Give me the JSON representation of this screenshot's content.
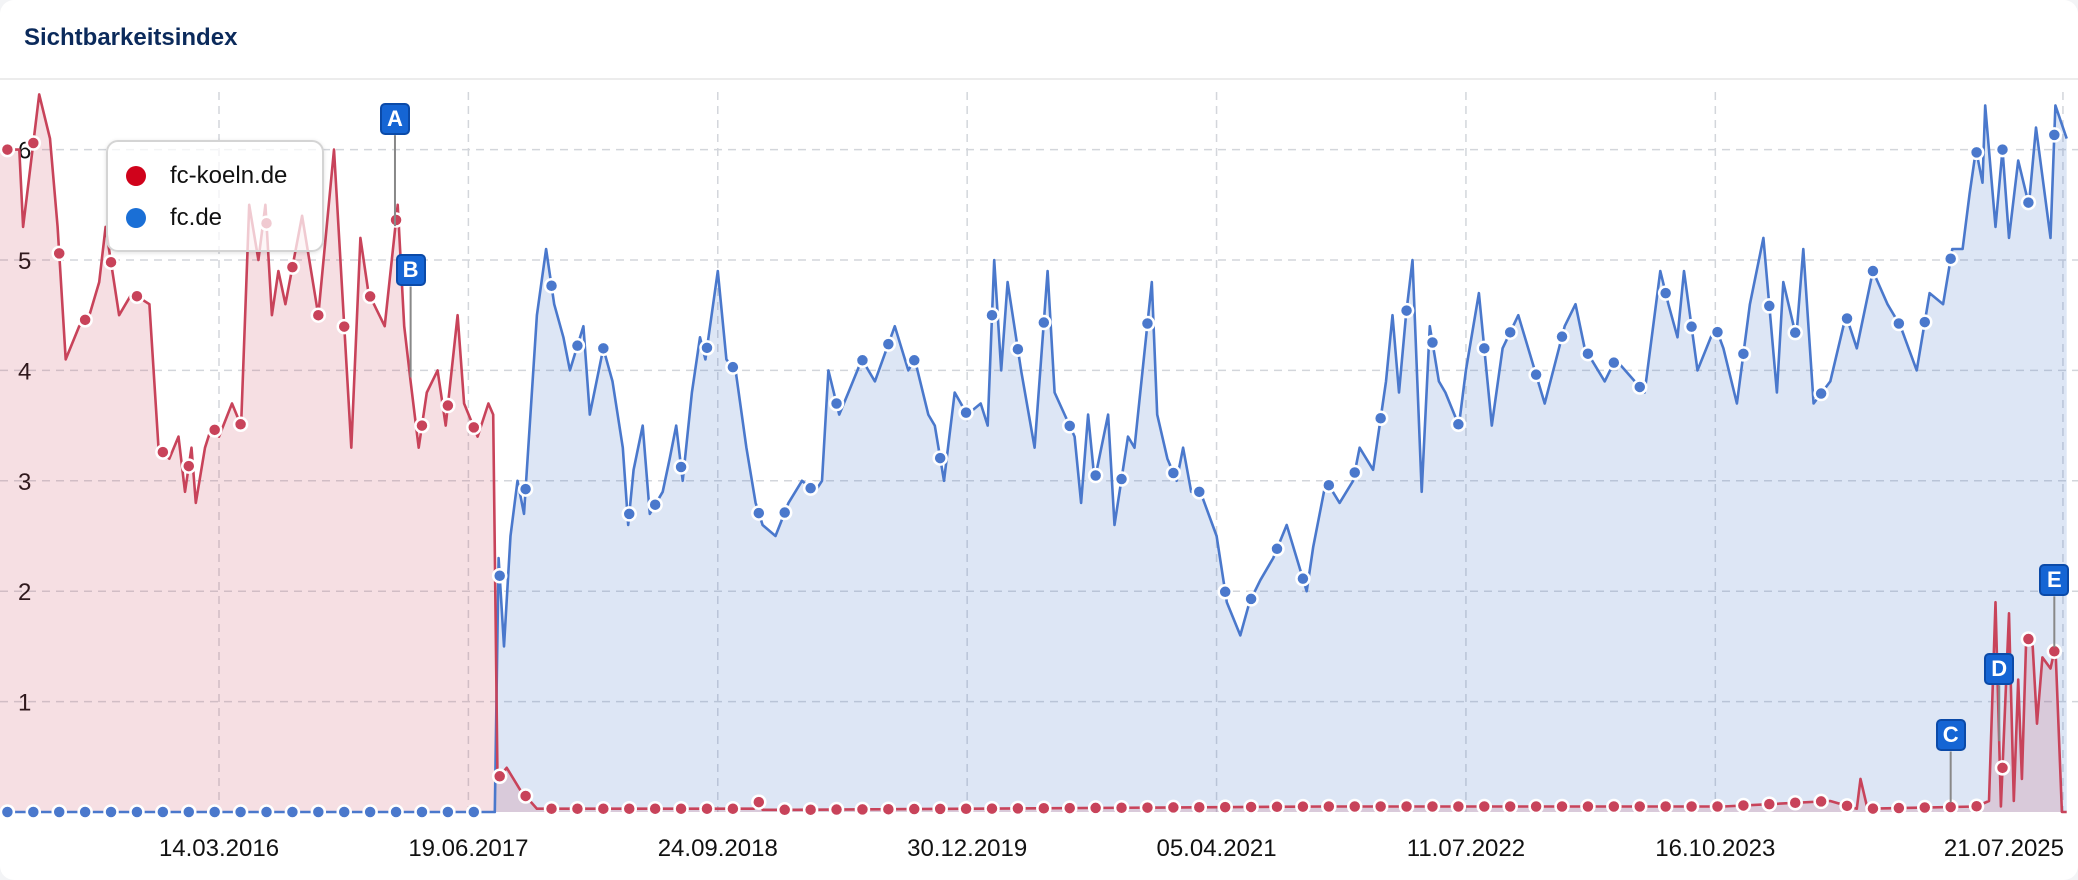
{
  "card": {
    "title": "Sichtbarkeitsindex"
  },
  "chart_data": {
    "type": "area",
    "title": "",
    "xlabel": "",
    "ylabel": "",
    "x_type": "date",
    "xlim": [
      "2015-02-01",
      "2025-07-28"
    ],
    "ylim": [
      0,
      6.6
    ],
    "y_ticks": [
      "1",
      "2",
      "3",
      "4",
      "5",
      "6"
    ],
    "x_ticks": [
      {
        "date": "2016-03-14",
        "label": "14.03.2016"
      },
      {
        "date": "2017-06-19",
        "label": "19.06.2017"
      },
      {
        "date": "2018-09-24",
        "label": "24.09.2018"
      },
      {
        "date": "2019-12-30",
        "label": "30.12.2019"
      },
      {
        "date": "2021-04-05",
        "label": "05.04.2021"
      },
      {
        "date": "2022-07-11",
        "label": "11.07.2022"
      },
      {
        "date": "2023-10-16",
        "label": "16.10.2023"
      },
      {
        "date": "2025-07-21",
        "label": "21.07.2025"
      }
    ],
    "grid": true,
    "legend_position": "top-left",
    "series": [
      {
        "name": "fc-koeln.de",
        "color": "#c8435a",
        "legend_color": "#d0021b",
        "points": [
          [
            "2015-02-02",
            6.0
          ],
          [
            "2015-03-10",
            6.0
          ],
          [
            "2015-03-17",
            5.3
          ],
          [
            "2015-03-27",
            5.7
          ],
          [
            "2015-04-16",
            6.5
          ],
          [
            "2015-05-06",
            6.1
          ],
          [
            "2015-05-20",
            5.3
          ],
          [
            "2015-06-04",
            4.1
          ],
          [
            "2015-06-29",
            4.4
          ],
          [
            "2015-07-18",
            4.5
          ],
          [
            "2015-08-05",
            4.8
          ],
          [
            "2015-08-17",
            5.3
          ],
          [
            "2015-09-11",
            4.5
          ],
          [
            "2015-10-05",
            4.7
          ],
          [
            "2015-11-06",
            4.6
          ],
          [
            "2015-11-23",
            3.3
          ],
          [
            "2015-12-13",
            3.2
          ],
          [
            "2015-12-30",
            3.4
          ],
          [
            "2016-01-11",
            2.9
          ],
          [
            "2016-01-23",
            3.3
          ],
          [
            "2016-01-31",
            2.8
          ],
          [
            "2016-02-17",
            3.3
          ],
          [
            "2016-03-01",
            3.5
          ],
          [
            "2016-03-14",
            3.4
          ],
          [
            "2016-04-07",
            3.7
          ],
          [
            "2016-04-24",
            3.5
          ],
          [
            "2016-05-09",
            5.5
          ],
          [
            "2016-05-26",
            5.0
          ],
          [
            "2016-06-08",
            5.5
          ],
          [
            "2016-06-20",
            4.5
          ],
          [
            "2016-07-02",
            4.9
          ],
          [
            "2016-07-15",
            4.6
          ],
          [
            "2016-08-15",
            5.4
          ],
          [
            "2016-09-14",
            4.5
          ],
          [
            "2016-10-13",
            6.0
          ],
          [
            "2016-11-14",
            3.3
          ],
          [
            "2016-12-01",
            5.2
          ],
          [
            "2016-12-16",
            4.7
          ],
          [
            "2017-01-15",
            4.4
          ],
          [
            "2017-02-08",
            5.5
          ],
          [
            "2017-02-20",
            4.4
          ],
          [
            "2017-03-04",
            3.9
          ],
          [
            "2017-03-19",
            3.3
          ],
          [
            "2017-04-03",
            3.8
          ],
          [
            "2017-04-23",
            4.0
          ],
          [
            "2017-05-08",
            3.5
          ],
          [
            "2017-05-30",
            4.5
          ],
          [
            "2017-06-11",
            3.7
          ],
          [
            "2017-07-06",
            3.4
          ],
          [
            "2017-07-26",
            3.7
          ],
          [
            "2017-08-04",
            3.6
          ],
          [
            "2017-08-12",
            0.3
          ],
          [
            "2017-08-29",
            0.4
          ],
          [
            "2017-09-23",
            0.2
          ],
          [
            "2017-10-24",
            0.03
          ],
          [
            "2018-11-30",
            0.03
          ],
          [
            "2018-12-08",
            0.1
          ],
          [
            "2018-12-16",
            0.02
          ],
          [
            "2019-02-15",
            0.02
          ],
          [
            "2021-10-25",
            0.05
          ],
          [
            "2023-10-31",
            0.05
          ],
          [
            "2024-05-16",
            0.1
          ],
          [
            "2024-07-04",
            0.03
          ],
          [
            "2024-07-11",
            0.3
          ],
          [
            "2024-07-24",
            0.03
          ],
          [
            "2025-02-10",
            0.05
          ],
          [
            "2025-03-06",
            0.1
          ],
          [
            "2025-03-18",
            1.9
          ],
          [
            "2025-03-28",
            0.05
          ],
          [
            "2025-04-12",
            1.8
          ],
          [
            "2025-04-21",
            0.1
          ],
          [
            "2025-04-29",
            1.2
          ],
          [
            "2025-05-06",
            0.3
          ],
          [
            "2025-05-14",
            1.6
          ],
          [
            "2025-05-26",
            1.5
          ],
          [
            "2025-06-03",
            0.8
          ],
          [
            "2025-06-13",
            1.4
          ],
          [
            "2025-06-28",
            1.3
          ],
          [
            "2025-07-07",
            1.5
          ],
          [
            "2025-07-19",
            0.0
          ],
          [
            "2025-07-28",
            0.0
          ]
        ]
      },
      {
        "name": "fc.de",
        "color": "#4a78cc",
        "legend_color": "#1a6fd6",
        "points": [
          [
            "2015-02-02",
            0.0
          ],
          [
            "2017-08-07",
            0.0
          ],
          [
            "2017-08-14",
            2.3
          ],
          [
            "2017-08-24",
            1.5
          ],
          [
            "2017-09-05",
            2.5
          ],
          [
            "2017-09-18",
            3.0
          ],
          [
            "2017-09-30",
            2.7
          ],
          [
            "2017-10-24",
            4.5
          ],
          [
            "2017-11-10",
            5.1
          ],
          [
            "2017-11-25",
            4.6
          ],
          [
            "2017-12-12",
            4.3
          ],
          [
            "2017-12-24",
            4.0
          ],
          [
            "2018-01-18",
            4.4
          ],
          [
            "2018-01-30",
            3.6
          ],
          [
            "2018-02-24",
            4.2
          ],
          [
            "2018-03-13",
            3.9
          ],
          [
            "2018-04-01",
            3.3
          ],
          [
            "2018-04-11",
            2.6
          ],
          [
            "2018-04-21",
            3.1
          ],
          [
            "2018-05-08",
            3.5
          ],
          [
            "2018-05-21",
            2.7
          ],
          [
            "2018-06-14",
            2.9
          ],
          [
            "2018-06-27",
            3.2
          ],
          [
            "2018-07-09",
            3.5
          ],
          [
            "2018-07-21",
            3.0
          ],
          [
            "2018-08-07",
            3.8
          ],
          [
            "2018-08-22",
            4.3
          ],
          [
            "2018-09-01",
            4.1
          ],
          [
            "2018-09-24",
            4.9
          ],
          [
            "2018-10-10",
            4.1
          ],
          [
            "2018-10-27",
            4.0
          ],
          [
            "2018-11-16",
            3.3
          ],
          [
            "2018-12-03",
            2.8
          ],
          [
            "2018-12-16",
            2.6
          ],
          [
            "2019-01-09",
            2.5
          ],
          [
            "2019-02-02",
            2.8
          ],
          [
            "2019-02-27",
            3.0
          ],
          [
            "2019-03-23",
            2.9
          ],
          [
            "2019-04-05",
            3.0
          ],
          [
            "2019-04-17",
            4.0
          ],
          [
            "2019-05-07",
            3.6
          ],
          [
            "2019-05-24",
            3.8
          ],
          [
            "2019-06-18",
            4.1
          ],
          [
            "2019-07-12",
            3.9
          ],
          [
            "2019-08-18",
            4.4
          ],
          [
            "2019-09-12",
            4.0
          ],
          [
            "2019-09-24",
            4.1
          ],
          [
            "2019-10-19",
            3.6
          ],
          [
            "2019-10-31",
            3.5
          ],
          [
            "2019-11-17",
            3.0
          ],
          [
            "2019-12-07",
            3.8
          ],
          [
            "2019-12-30",
            3.6
          ],
          [
            "2020-01-24",
            3.7
          ],
          [
            "2020-02-06",
            3.5
          ],
          [
            "2020-02-18",
            5.0
          ],
          [
            "2020-03-02",
            4.0
          ],
          [
            "2020-03-14",
            4.8
          ],
          [
            "2020-04-08",
            4.0
          ],
          [
            "2020-05-03",
            3.3
          ],
          [
            "2020-05-27",
            4.9
          ],
          [
            "2020-06-09",
            3.8
          ],
          [
            "2020-07-16",
            3.4
          ],
          [
            "2020-07-28",
            2.8
          ],
          [
            "2020-08-10",
            3.6
          ],
          [
            "2020-08-22",
            3.0
          ],
          [
            "2020-09-16",
            3.6
          ],
          [
            "2020-09-28",
            2.6
          ],
          [
            "2020-10-23",
            3.4
          ],
          [
            "2020-11-04",
            3.3
          ],
          [
            "2020-12-06",
            4.8
          ],
          [
            "2020-12-16",
            3.6
          ],
          [
            "2021-01-04",
            3.2
          ],
          [
            "2021-01-21",
            3.0
          ],
          [
            "2021-02-02",
            3.3
          ],
          [
            "2021-02-17",
            2.9
          ],
          [
            "2021-03-06",
            2.9
          ],
          [
            "2021-04-05",
            2.5
          ],
          [
            "2021-04-24",
            1.9
          ],
          [
            "2021-05-19",
            1.6
          ],
          [
            "2021-06-05",
            1.9
          ],
          [
            "2021-06-25",
            2.1
          ],
          [
            "2021-07-19",
            2.3
          ],
          [
            "2021-08-13",
            2.6
          ],
          [
            "2021-09-19",
            2.0
          ],
          [
            "2021-10-01",
            2.4
          ],
          [
            "2021-10-25",
            3.0
          ],
          [
            "2021-11-19",
            2.8
          ],
          [
            "2021-12-14",
            3.0
          ],
          [
            "2021-12-26",
            3.3
          ],
          [
            "2022-01-20",
            3.1
          ],
          [
            "2022-02-01",
            3.5
          ],
          [
            "2022-02-13",
            3.9
          ],
          [
            "2022-02-25",
            4.5
          ],
          [
            "2022-03-09",
            3.8
          ],
          [
            "2022-03-22",
            4.5
          ],
          [
            "2022-04-03",
            5.0
          ],
          [
            "2022-04-20",
            2.9
          ],
          [
            "2022-05-05",
            4.4
          ],
          [
            "2022-05-22",
            3.9
          ],
          [
            "2022-06-03",
            3.8
          ],
          [
            "2022-06-28",
            3.5
          ],
          [
            "2022-07-11",
            4.0
          ],
          [
            "2022-08-04",
            4.7
          ],
          [
            "2022-08-28",
            3.5
          ],
          [
            "2022-09-17",
            4.2
          ],
          [
            "2022-10-16",
            4.5
          ],
          [
            "2022-12-04",
            3.7
          ],
          [
            "2023-01-10",
            4.4
          ],
          [
            "2023-01-30",
            4.6
          ],
          [
            "2023-02-16",
            4.2
          ],
          [
            "2023-03-25",
            3.9
          ],
          [
            "2023-04-14",
            4.1
          ],
          [
            "2023-06-07",
            3.8
          ],
          [
            "2023-07-06",
            4.9
          ],
          [
            "2023-07-21",
            4.6
          ],
          [
            "2023-08-07",
            4.3
          ],
          [
            "2023-08-19",
            4.9
          ],
          [
            "2023-09-13",
            4.0
          ],
          [
            "2023-10-16",
            4.4
          ],
          [
            "2023-10-31",
            4.2
          ],
          [
            "2023-11-25",
            3.7
          ],
          [
            "2023-12-19",
            4.6
          ],
          [
            "2024-01-13",
            5.2
          ],
          [
            "2024-02-07",
            3.8
          ],
          [
            "2024-02-19",
            4.8
          ],
          [
            "2024-03-14",
            4.3
          ],
          [
            "2024-03-27",
            5.1
          ],
          [
            "2024-04-15",
            3.7
          ],
          [
            "2024-05-16",
            3.9
          ],
          [
            "2024-06-14",
            4.5
          ],
          [
            "2024-07-04",
            4.2
          ],
          [
            "2024-08-03",
            4.9
          ],
          [
            "2024-08-30",
            4.6
          ],
          [
            "2024-09-23",
            4.4
          ],
          [
            "2024-10-23",
            4.0
          ],
          [
            "2024-11-16",
            4.7
          ],
          [
            "2024-12-11",
            4.6
          ],
          [
            "2024-12-28",
            5.1
          ],
          [
            "2025-01-16",
            5.1
          ],
          [
            "2025-01-29",
            5.6
          ],
          [
            "2025-02-10",
            6.0
          ],
          [
            "2025-02-22",
            5.7
          ],
          [
            "2025-02-27",
            6.4
          ],
          [
            "2025-03-18",
            5.3
          ],
          [
            "2025-03-31",
            6.0
          ],
          [
            "2025-04-12",
            5.2
          ],
          [
            "2025-04-29",
            5.9
          ],
          [
            "2025-05-19",
            5.5
          ],
          [
            "2025-06-01",
            6.2
          ],
          [
            "2025-06-28",
            5.2
          ],
          [
            "2025-07-07",
            6.4
          ],
          [
            "2025-07-28",
            6.1
          ]
        ]
      }
    ],
    "annotations": [
      {
        "label": "A",
        "date": "2017-02-03",
        "color": "#1565d4"
      },
      {
        "label": "B",
        "date": "2017-03-04",
        "color": "#1565d4"
      },
      {
        "label": "C",
        "date": "2024-12-25",
        "color": "#1565d4"
      },
      {
        "label": "D",
        "date": "2025-03-25",
        "color": "#1565d4"
      },
      {
        "label": "E",
        "date": "2025-07-05",
        "color": "#1565d4"
      }
    ]
  }
}
